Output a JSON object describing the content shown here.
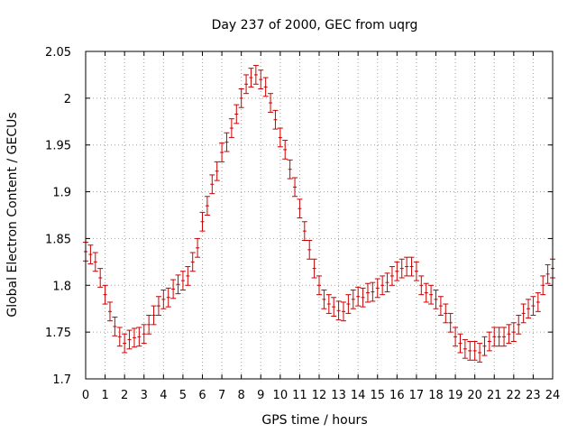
{
  "chart_data": {
    "type": "scatter",
    "title": "Day 237 of 2000, GEC from uqrg",
    "xlabel": "GPS time / hours",
    "ylabel": "Global Electron Content / GECUs",
    "xlim": [
      0,
      24
    ],
    "ylim": [
      1.7,
      2.05
    ],
    "grid": true,
    "error_bars": true,
    "x_ticks": [
      "0",
      "1",
      "2",
      "3",
      "4",
      "5",
      "6",
      "7",
      "8",
      "9",
      "10",
      "11",
      "12",
      "13",
      "14",
      "15",
      "16",
      "17",
      "18",
      "19",
      "20",
      "21",
      "22",
      "23",
      "24"
    ],
    "y_ticks": [
      "1.7",
      "1.75",
      "1.8",
      "1.85",
      "1.9",
      "1.95",
      "2",
      "2.05"
    ],
    "colors": {
      "series": "#cc0000",
      "grid": "#a0a0a0",
      "axis": "#000000"
    },
    "series": [
      {
        "error": 0.01,
        "x": [
          0.0,
          0.25,
          0.5,
          0.75,
          1.0,
          1.25,
          1.5,
          1.75,
          2.0,
          2.25,
          2.5,
          2.75,
          3.0,
          3.25,
          3.5,
          3.75,
          4.0,
          4.25,
          4.5,
          4.75,
          5.0,
          5.25,
          5.5,
          5.75,
          6.0,
          6.25,
          6.5,
          6.75,
          7.0,
          7.25,
          7.5,
          7.75,
          8.0,
          8.25,
          8.5,
          8.75,
          9.0,
          9.25,
          9.5,
          9.75,
          10.0,
          10.25,
          10.5,
          10.75,
          11.0,
          11.25,
          11.5,
          11.75,
          12.0,
          12.25,
          12.5,
          12.75,
          13.0,
          13.25,
          13.5,
          13.75,
          14.0,
          14.25,
          14.5,
          14.75,
          15.0,
          15.25,
          15.5,
          15.75,
          16.0,
          16.25,
          16.5,
          16.75,
          17.0,
          17.25,
          17.5,
          17.75,
          18.0,
          18.25,
          18.5,
          18.75,
          19.0,
          19.25,
          19.5,
          19.75,
          20.0,
          20.25,
          20.5,
          20.75,
          21.0,
          21.25,
          21.5,
          21.75,
          22.0,
          22.25,
          22.5,
          22.75,
          23.0,
          23.25,
          23.5,
          23.75,
          24.0
        ],
        "y": [
          1.836,
          1.833,
          1.825,
          1.808,
          1.79,
          1.772,
          1.756,
          1.745,
          1.738,
          1.742,
          1.744,
          1.745,
          1.748,
          1.758,
          1.768,
          1.778,
          1.785,
          1.787,
          1.796,
          1.801,
          1.805,
          1.81,
          1.825,
          1.84,
          1.868,
          1.885,
          1.908,
          1.922,
          1.942,
          1.953,
          1.968,
          1.983,
          2.0,
          2.015,
          2.022,
          2.025,
          2.02,
          2.012,
          1.995,
          1.977,
          1.958,
          1.945,
          1.924,
          1.905,
          1.882,
          1.858,
          1.838,
          1.818,
          1.8,
          1.785,
          1.78,
          1.777,
          1.773,
          1.772,
          1.78,
          1.785,
          1.788,
          1.787,
          1.792,
          1.793,
          1.797,
          1.8,
          1.803,
          1.81,
          1.815,
          1.818,
          1.82,
          1.82,
          1.815,
          1.8,
          1.792,
          1.79,
          1.785,
          1.778,
          1.77,
          1.76,
          1.745,
          1.738,
          1.732,
          1.73,
          1.73,
          1.728,
          1.735,
          1.74,
          1.745,
          1.745,
          1.745,
          1.748,
          1.75,
          1.758,
          1.77,
          1.775,
          1.778,
          1.782,
          1.8,
          1.812,
          1.818
        ]
      }
    ]
  }
}
